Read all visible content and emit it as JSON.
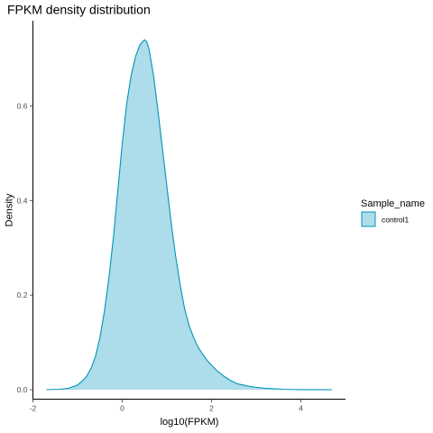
{
  "chart_data": {
    "type": "area",
    "title": "FPKM density distribution",
    "xlabel": "log10(FPKM)",
    "ylabel": "Density",
    "xlim": [
      -2.0,
      5.0
    ],
    "ylim": [
      -0.02,
      0.78
    ],
    "x_ticks": [
      -2,
      0,
      2,
      4
    ],
    "x_tick_labels": [
      "-2",
      "0",
      "2",
      "4"
    ],
    "y_ticks": [
      0.0,
      0.2,
      0.4,
      0.6
    ],
    "y_tick_labels": [
      "0.0",
      "0.2",
      "0.4",
      "0.6"
    ],
    "grid": false,
    "legend": {
      "title": "Sample_name",
      "position": "right"
    },
    "series": [
      {
        "name": "control1",
        "line_color": "#0095B8",
        "fill_color": "#ADDCEA",
        "x": [
          -1.7,
          -1.4,
          -1.2,
          -1.0,
          -0.9,
          -0.8,
          -0.7,
          -0.6,
          -0.5,
          -0.4,
          -0.3,
          -0.2,
          -0.1,
          0.0,
          0.1,
          0.2,
          0.3,
          0.4,
          0.5,
          0.55,
          0.6,
          0.7,
          0.8,
          0.9,
          1.0,
          1.1,
          1.2,
          1.3,
          1.4,
          1.5,
          1.6,
          1.7,
          1.8,
          1.9,
          2.0,
          2.1,
          2.2,
          2.3,
          2.4,
          2.5,
          2.6,
          2.8,
          3.0,
          3.2,
          3.4,
          3.6,
          3.8,
          4.0,
          4.4,
          4.7
        ],
        "y": [
          0.0,
          0.001,
          0.003,
          0.01,
          0.018,
          0.028,
          0.045,
          0.07,
          0.11,
          0.165,
          0.235,
          0.32,
          0.42,
          0.52,
          0.605,
          0.665,
          0.705,
          0.73,
          0.74,
          0.735,
          0.72,
          0.665,
          0.59,
          0.51,
          0.43,
          0.35,
          0.28,
          0.22,
          0.17,
          0.135,
          0.11,
          0.09,
          0.075,
          0.062,
          0.052,
          0.042,
          0.034,
          0.027,
          0.021,
          0.016,
          0.012,
          0.008,
          0.005,
          0.003,
          0.002,
          0.001,
          0.0005,
          0.0002,
          0.0001,
          0.0
        ]
      }
    ]
  }
}
